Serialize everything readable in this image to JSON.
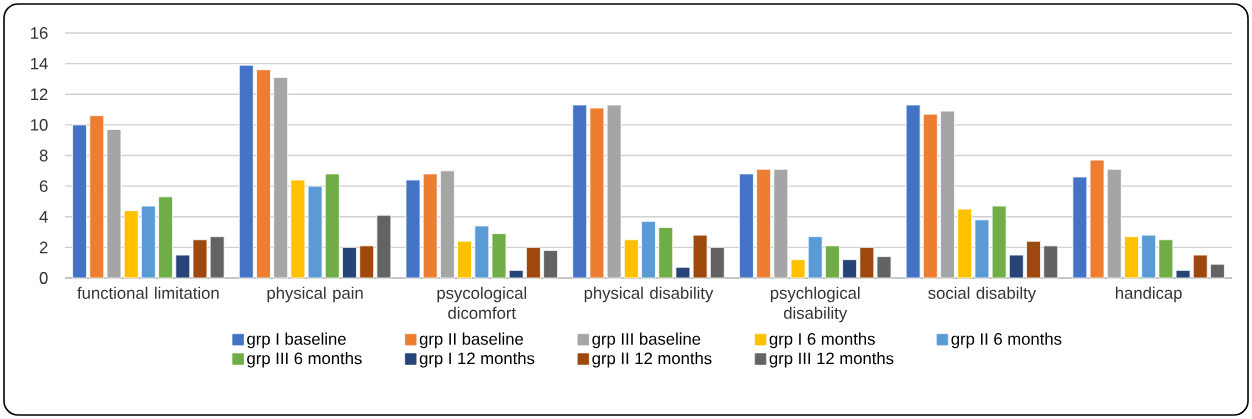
{
  "chart_data": {
    "type": "bar",
    "categories": [
      "functional limitation",
      "physical pain",
      "psycological dicomfort",
      "physical disability",
      "psychlogical disability",
      "social disabilty",
      "handicap"
    ],
    "series": [
      {
        "name": "grp I baseline",
        "color": "#4472c4",
        "values": [
          10.0,
          13.9,
          6.4,
          11.3,
          6.8,
          11.3,
          6.6
        ]
      },
      {
        "name": "grp II baseline",
        "color": "#ed7d31",
        "values": [
          10.6,
          13.6,
          6.8,
          11.1,
          7.1,
          10.7,
          7.7
        ]
      },
      {
        "name": "grp III baseline",
        "color": "#a5a5a5",
        "values": [
          9.7,
          13.1,
          7.0,
          11.3,
          7.1,
          10.9,
          7.1
        ]
      },
      {
        "name": "grp I 6 months",
        "color": "#ffc000",
        "values": [
          4.4,
          6.4,
          2.4,
          2.5,
          1.2,
          4.5,
          2.7
        ]
      },
      {
        "name": "grp II 6 months",
        "color": "#5b9bd5",
        "values": [
          4.7,
          6.0,
          3.4,
          3.7,
          2.7,
          3.8,
          2.8
        ]
      },
      {
        "name": "grp III 6 months",
        "color": "#70ad47",
        "values": [
          5.3,
          6.8,
          2.9,
          3.3,
          2.1,
          4.7,
          2.5
        ]
      },
      {
        "name": "grp I 12 months",
        "color": "#264478",
        "values": [
          1.5,
          2.0,
          0.5,
          0.7,
          1.2,
          1.5,
          0.5
        ]
      },
      {
        "name": "grp II 12 months",
        "color": "#9e480e",
        "values": [
          2.5,
          2.1,
          2.0,
          2.8,
          2.0,
          2.4,
          1.5
        ]
      },
      {
        "name": "grp III 12 months",
        "color": "#636363",
        "values": [
          2.7,
          4.1,
          1.8,
          2.0,
          1.4,
          2.1,
          0.9
        ]
      }
    ],
    "ylim": [
      0,
      16
    ],
    "yticks": [
      0,
      2,
      4,
      6,
      8,
      10,
      12,
      14,
      16
    ],
    "grid": "y",
    "legend": "bottom"
  }
}
